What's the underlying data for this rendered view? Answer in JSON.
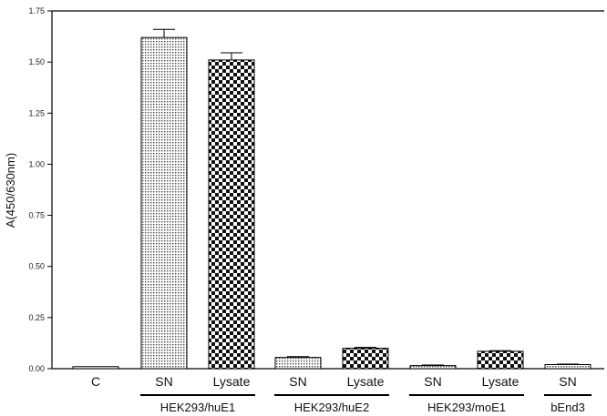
{
  "chart_data": {
    "type": "bar",
    "title": "",
    "xlabel": "",
    "ylabel": "A(450/630nm)",
    "ylim": [
      0,
      1.75
    ],
    "yticks": [
      "0.00",
      "0.25",
      "0.50",
      "0.75",
      "1.00",
      "1.25",
      "1.50",
      "1.75"
    ],
    "grid": false,
    "legend": "none",
    "bars": [
      {
        "label": "C",
        "value": 0.01,
        "error": 0,
        "pattern": "none"
      },
      {
        "label": "SN",
        "value": 1.62,
        "error": 0.04,
        "pattern": "fine"
      },
      {
        "label": "Lysate",
        "value": 1.51,
        "error": 0.035,
        "pattern": "checker"
      },
      {
        "label": "SN",
        "value": 0.055,
        "error": 0.004,
        "pattern": "fine"
      },
      {
        "label": "Lysate",
        "value": 0.1,
        "error": 0.004,
        "pattern": "checker"
      },
      {
        "label": "SN",
        "value": 0.015,
        "error": 0.003,
        "pattern": "fine"
      },
      {
        "label": "Lysate",
        "value": 0.085,
        "error": 0.003,
        "pattern": "checker"
      },
      {
        "label": "SN",
        "value": 0.02,
        "error": 0.002,
        "pattern": "fine"
      }
    ],
    "groups": [
      {
        "label": "HEK293/huE1",
        "from": 1,
        "to": 2
      },
      {
        "label": "HEK293/huE2",
        "from": 3,
        "to": 4
      },
      {
        "label": "HEK293/moE1",
        "from": 5,
        "to": 6
      },
      {
        "label": "bEnd3",
        "from": 7,
        "to": 7
      }
    ]
  }
}
